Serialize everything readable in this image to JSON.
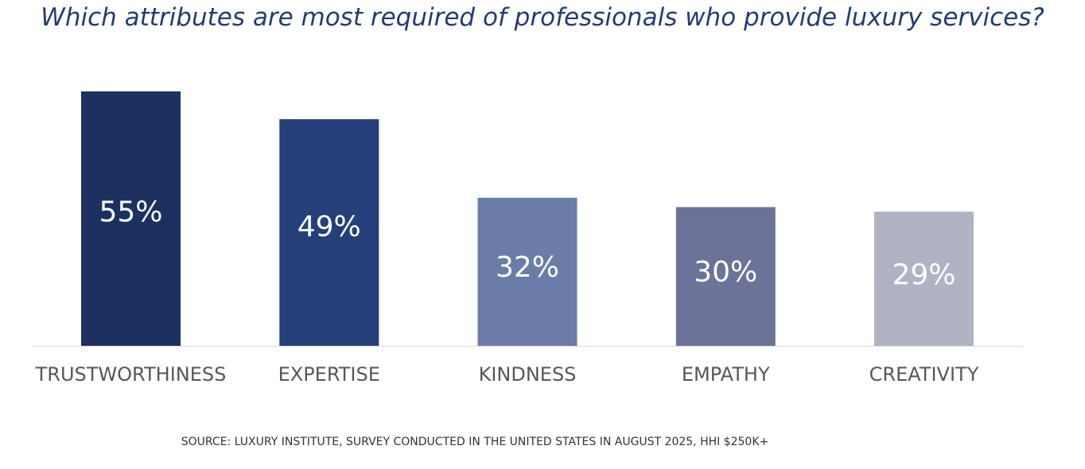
{
  "chart_data": {
    "type": "bar",
    "title": "Which attributes are most required of professionals who provide luxury services?",
    "categories": [
      "TRUSTWORTHINESS",
      "EXPERTISE",
      "KINDNESS",
      "EMPATHY",
      "CREATIVITY"
    ],
    "values": [
      55,
      49,
      32,
      30,
      29
    ],
    "value_labels": [
      "55%",
      "49%",
      "32%",
      "30%",
      "29%"
    ],
    "colors": [
      "#1c3160",
      "#243f79",
      "#6b7ca8",
      "#6c7398",
      "#b0b3c3"
    ],
    "ylim": [
      0,
      60
    ],
    "xlabel": "",
    "ylabel": "",
    "grid": false,
    "legend": "none",
    "source": "SOURCE: LUXURY INSTITUTE, SURVEY CONDUCTED IN THE UNITED STATES IN AUGUST 2025, HHI $250K+"
  }
}
